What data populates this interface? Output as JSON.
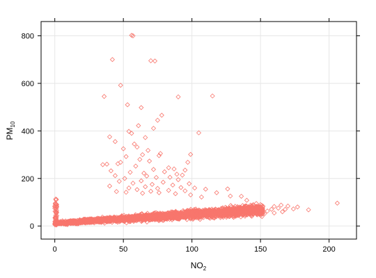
{
  "chart_data": {
    "type": "scatter",
    "xlabel": "NO",
    "xlabel_sub": "2",
    "ylabel": "PM",
    "ylabel_sub": "10",
    "xlim": [
      -10,
      220
    ],
    "ylim": [
      -55,
      860
    ],
    "xticks": [
      0,
      50,
      100,
      150,
      200
    ],
    "yticks": [
      0,
      200,
      400,
      600,
      800
    ],
    "grid": true,
    "colors": {
      "points": "#f8766d",
      "grid": "#e6e6e6",
      "frame": "#000000"
    },
    "marker": "open-diamond",
    "outliers": [
      [
        56,
        802
      ],
      [
        57,
        800
      ],
      [
        42,
        700
      ],
      [
        70,
        695
      ],
      [
        73,
        694
      ],
      [
        48,
        592
      ],
      [
        115,
        547
      ],
      [
        36,
        545
      ],
      [
        90,
        543
      ],
      [
        53,
        510
      ],
      [
        63,
        498
      ],
      [
        78,
        466
      ],
      [
        75,
        445
      ],
      [
        61,
        422
      ],
      [
        72,
        411
      ],
      [
        105,
        392
      ],
      [
        54,
        398
      ],
      [
        56,
        390
      ],
      [
        40,
        375
      ],
      [
        66,
        372
      ],
      [
        44,
        355
      ],
      [
        58,
        345
      ],
      [
        60,
        332
      ],
      [
        50,
        325
      ],
      [
        68,
        318
      ],
      [
        77,
        305
      ],
      [
        64,
        300
      ],
      [
        76,
        296
      ],
      [
        99,
        301
      ],
      [
        52,
        292
      ],
      [
        62,
        280
      ],
      [
        69,
        273
      ],
      [
        48,
        268
      ],
      [
        46,
        262
      ],
      [
        97,
        268
      ],
      [
        38,
        260
      ],
      [
        35,
        258
      ],
      [
        59,
        252
      ],
      [
        83,
        245
      ],
      [
        87,
        240
      ],
      [
        72,
        238
      ],
      [
        95,
        235
      ],
      [
        41,
        232
      ],
      [
        80,
        228
      ],
      [
        55,
        226
      ],
      [
        65,
        222
      ],
      [
        89,
        218
      ],
      [
        93,
        214
      ],
      [
        44,
        212
      ],
      [
        67,
        210
      ],
      [
        84,
        205
      ],
      [
        74,
        204
      ],
      [
        51,
        200
      ],
      [
        90,
        195
      ],
      [
        63,
        190
      ],
      [
        47,
        188
      ],
      [
        79,
        184
      ],
      [
        57,
        180
      ],
      [
        98,
        178
      ],
      [
        71,
        175
      ],
      [
        86,
        172
      ],
      [
        40,
        168
      ],
      [
        66,
        165
      ],
      [
        92,
        162
      ],
      [
        54,
        160
      ],
      [
        75,
        158
      ],
      [
        102,
        160
      ],
      [
        110,
        155
      ],
      [
        60,
        153
      ],
      [
        83,
        150
      ],
      [
        95,
        148
      ],
      [
        70,
        146
      ],
      [
        45,
        145
      ],
      [
        118,
        140
      ],
      [
        126,
        156
      ],
      [
        128,
        126
      ],
      [
        136,
        125
      ],
      [
        140,
        108
      ],
      [
        107,
        122
      ],
      [
        99,
        131
      ],
      [
        88,
        136
      ],
      [
        76,
        140
      ],
      [
        64,
        138
      ],
      [
        52,
        142
      ]
    ],
    "tail_points": [
      [
        155,
        63
      ],
      [
        158,
        70
      ],
      [
        160,
        82
      ],
      [
        163,
        75
      ],
      [
        165,
        88
      ],
      [
        168,
        70
      ],
      [
        170,
        84
      ],
      [
        174,
        72
      ],
      [
        177,
        80
      ],
      [
        185,
        68
      ],
      [
        206,
        96
      ],
      [
        150,
        90
      ],
      [
        153,
        52
      ],
      [
        160,
        55
      ],
      [
        166,
        60
      ]
    ],
    "point_cloud": {
      "count": 2800,
      "x_range": [
        0,
        152
      ],
      "y_intercept": 12,
      "y_slope": 0.37,
      "spread": 28,
      "seed": 7
    },
    "zero_column": {
      "count": 70,
      "y_range": [
        5,
        120
      ]
    }
  }
}
